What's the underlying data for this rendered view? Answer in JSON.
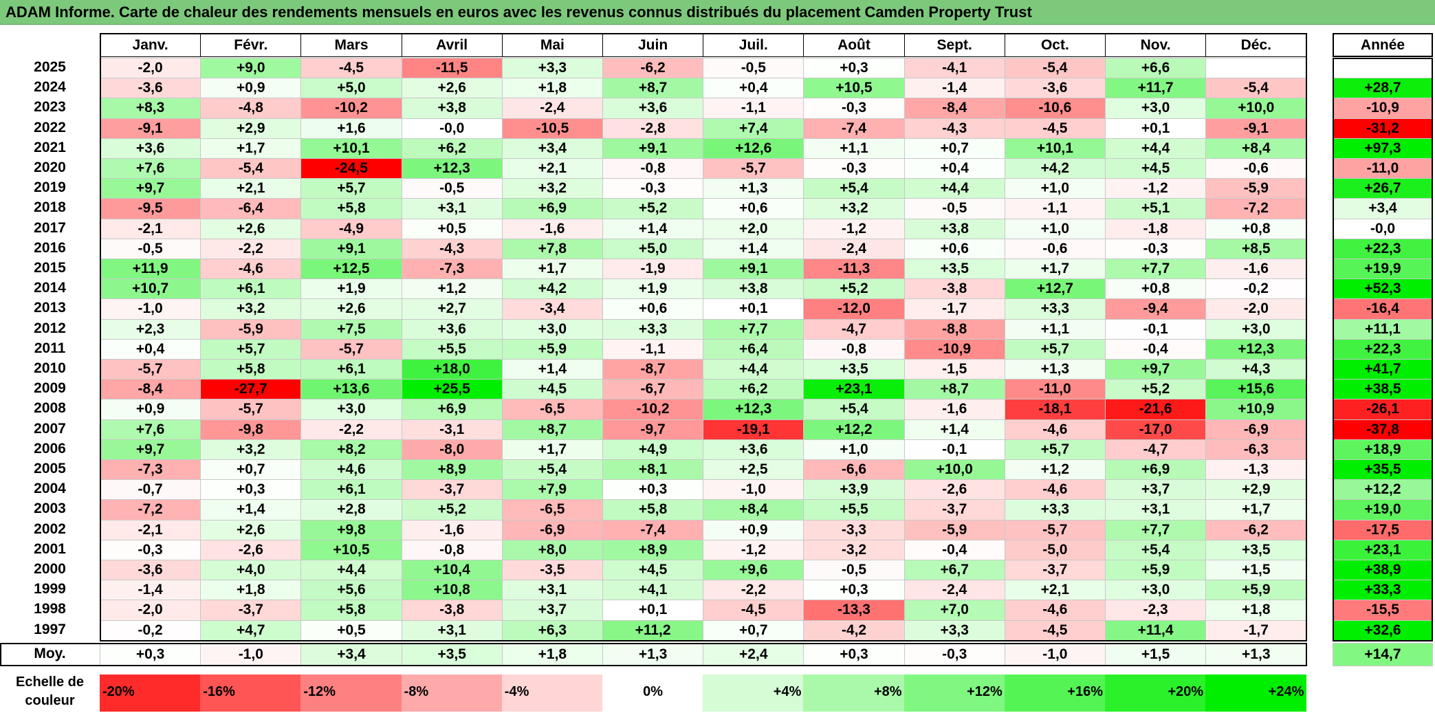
{
  "title": "ADAM Informe. Carte de chaleur des rendements mensuels en euros avec les revenus connus distribués du placement Camden Property Trust",
  "chart_data": {
    "type": "heatmap",
    "title": "ADAM Informe. Carte de chaleur des rendements mensuels en euros avec les revenus connus distribués du placement Camden Property Trust",
    "months": [
      "Janv.",
      "Févr.",
      "Mars",
      "Avril",
      "Mai",
      "Juin",
      "Juil.",
      "Août",
      "Sept.",
      "Oct.",
      "Nov.",
      "Déc."
    ],
    "annual_header": "Année",
    "years": [
      "2025",
      "2024",
      "2023",
      "2022",
      "2021",
      "2020",
      "2019",
      "2018",
      "2017",
      "2016",
      "2015",
      "2014",
      "2013",
      "2012",
      "2011",
      "2010",
      "2009",
      "2008",
      "2007",
      "2006",
      "2005",
      "2004",
      "2003",
      "2002",
      "2001",
      "2000",
      "1999",
      "1998",
      "1997"
    ],
    "values": [
      [
        "-2,0",
        "+9,0",
        "-4,5",
        "-11,5",
        "+3,3",
        "-6,2",
        "-0,5",
        "+0,3",
        "-4,1",
        "-5,4",
        "+6,6",
        ""
      ],
      [
        "-3,6",
        "+0,9",
        "+5,0",
        "+2,6",
        "+1,8",
        "+8,7",
        "+0,4",
        "+10,5",
        "-1,4",
        "-3,6",
        "+11,7",
        "-5,4"
      ],
      [
        "+8,3",
        "-4,8",
        "-10,2",
        "+3,8",
        "-2,4",
        "+3,6",
        "-1,1",
        "-0,3",
        "-8,4",
        "-10,6",
        "+3,0",
        "+10,0"
      ],
      [
        "-9,1",
        "+2,9",
        "+1,6",
        "-0,0",
        "-10,5",
        "-2,8",
        "+7,4",
        "-7,4",
        "-4,3",
        "-4,5",
        "+0,1",
        "-9,1"
      ],
      [
        "+3,6",
        "+1,7",
        "+10,1",
        "+6,2",
        "+3,4",
        "+9,1",
        "+12,6",
        "+1,1",
        "+0,7",
        "+10,1",
        "+4,4",
        "+8,4"
      ],
      [
        "+7,6",
        "-5,4",
        "-24,5",
        "+12,3",
        "+2,1",
        "-0,8",
        "-5,7",
        "-0,3",
        "+0,4",
        "+4,2",
        "+4,5",
        "-0,6"
      ],
      [
        "+9,7",
        "+2,1",
        "+5,7",
        "-0,5",
        "+3,2",
        "-0,3",
        "+1,3",
        "+5,4",
        "+4,4",
        "+1,0",
        "-1,2",
        "-5,9"
      ],
      [
        "-9,5",
        "-6,4",
        "+5,8",
        "+3,1",
        "+6,9",
        "+5,2",
        "+0,6",
        "+3,2",
        "-0,5",
        "-1,1",
        "+5,1",
        "-7,2"
      ],
      [
        "-2,1",
        "+2,6",
        "-4,9",
        "+0,5",
        "-1,6",
        "+1,4",
        "+2,0",
        "-1,2",
        "+3,8",
        "+1,0",
        "-1,8",
        "+0,8"
      ],
      [
        "-0,5",
        "-2,2",
        "+9,1",
        "-4,3",
        "+7,8",
        "+5,0",
        "+1,4",
        "-2,4",
        "+0,6",
        "-0,6",
        "-0,3",
        "+8,5"
      ],
      [
        "+11,9",
        "-4,6",
        "+12,5",
        "-7,3",
        "+1,7",
        "-1,9",
        "+9,1",
        "-11,3",
        "+3,5",
        "+1,7",
        "+7,7",
        "-1,6"
      ],
      [
        "+10,7",
        "+6,1",
        "+1,9",
        "+1,2",
        "+4,2",
        "+1,9",
        "+3,8",
        "+5,2",
        "-3,8",
        "+12,7",
        "+0,8",
        "-0,2"
      ],
      [
        "-1,0",
        "+3,2",
        "+2,6",
        "+2,7",
        "-3,4",
        "+0,6",
        "+0,1",
        "-12,0",
        "-1,7",
        "+3,3",
        "-9,4",
        "-2,0"
      ],
      [
        "+2,3",
        "-5,9",
        "+7,5",
        "+3,6",
        "+3,0",
        "+3,3",
        "+7,7",
        "-4,7",
        "-8,8",
        "+1,1",
        "-0,1",
        "+3,0"
      ],
      [
        "+0,4",
        "+5,7",
        "-5,7",
        "+5,5",
        "+5,9",
        "-1,1",
        "+6,4",
        "-0,8",
        "-10,9",
        "+5,7",
        "-0,4",
        "+12,3"
      ],
      [
        "-5,7",
        "+5,8",
        "+6,1",
        "+18,0",
        "+1,4",
        "-8,7",
        "+4,4",
        "+3,5",
        "-1,5",
        "+1,3",
        "+9,7",
        "+4,3"
      ],
      [
        "-8,4",
        "-27,7",
        "+13,6",
        "+25,5",
        "+4,5",
        "-6,7",
        "+6,2",
        "+23,1",
        "+8,7",
        "-11,0",
        "+5,2",
        "+15,6"
      ],
      [
        "+0,9",
        "-5,7",
        "+3,0",
        "+6,9",
        "-6,5",
        "-10,2",
        "+12,3",
        "+5,4",
        "-1,6",
        "-18,1",
        "-21,6",
        "+10,9"
      ],
      [
        "+7,6",
        "-9,8",
        "-2,2",
        "-3,1",
        "+8,7",
        "-9,7",
        "-19,1",
        "+12,2",
        "+1,4",
        "-4,6",
        "-17,0",
        "-6,9"
      ],
      [
        "+9,7",
        "+3,2",
        "+8,2",
        "-8,0",
        "+1,7",
        "+4,9",
        "+3,6",
        "+1,0",
        "-0,1",
        "+5,7",
        "-4,7",
        "-6,3"
      ],
      [
        "-7,3",
        "+0,7",
        "+4,6",
        "+8,9",
        "+5,4",
        "+8,1",
        "+2,5",
        "-6,6",
        "+10,0",
        "+1,2",
        "+6,9",
        "-1,3"
      ],
      [
        "-0,7",
        "+0,3",
        "+6,1",
        "-3,7",
        "+7,9",
        "+0,3",
        "-1,0",
        "+3,9",
        "-2,6",
        "-4,6",
        "+3,7",
        "+2,9"
      ],
      [
        "-7,2",
        "+1,4",
        "+2,8",
        "+5,2",
        "-6,5",
        "+5,8",
        "+8,4",
        "+5,5",
        "-3,7",
        "+3,3",
        "+3,1",
        "+1,7"
      ],
      [
        "-2,1",
        "+2,6",
        "+9,8",
        "-1,6",
        "-6,9",
        "-7,4",
        "+0,9",
        "-3,3",
        "-5,9",
        "-5,7",
        "+7,7",
        "-6,2"
      ],
      [
        "-0,3",
        "-2,6",
        "+10,5",
        "-0,8",
        "+8,0",
        "+8,9",
        "-1,2",
        "-3,2",
        "-0,4",
        "-5,0",
        "+5,4",
        "+3,5"
      ],
      [
        "-3,6",
        "+4,0",
        "+4,4",
        "+10,4",
        "-3,5",
        "+4,5",
        "+9,6",
        "-0,5",
        "+6,7",
        "-3,7",
        "+5,9",
        "+1,5"
      ],
      [
        "-1,4",
        "+1,8",
        "+5,6",
        "+10,8",
        "+3,1",
        "+4,1",
        "-2,2",
        "+0,3",
        "-2,4",
        "+2,1",
        "+3,0",
        "+5,9"
      ],
      [
        "-2,0",
        "-3,7",
        "+5,8",
        "-3,8",
        "+3,7",
        "+0,1",
        "-4,5",
        "-13,3",
        "+7,0",
        "-4,6",
        "-2,3",
        "+1,8"
      ],
      [
        "-0,2",
        "+4,7",
        "+0,5",
        "+3,1",
        "+6,3",
        "+11,2",
        "+0,7",
        "-4,2",
        "+3,3",
        "-4,5",
        "+11,4",
        "-1,7"
      ]
    ],
    "annual": [
      "",
      "+28,7",
      "-10,9",
      "-31,2",
      "+97,3",
      "-11,0",
      "+26,7",
      "+3,4",
      "-0,0",
      "+22,3",
      "+19,9",
      "+52,3",
      "-16,4",
      "+11,1",
      "+22,3",
      "+41,7",
      "+38,5",
      "-26,1",
      "-37,8",
      "+18,9",
      "+35,5",
      "+12,2",
      "+19,0",
      "-17,5",
      "+23,1",
      "+38,9",
      "+33,3",
      "-15,5",
      "+32,6"
    ],
    "average_label": "Moy.",
    "average": [
      "+0,3",
      "-1,0",
      "+3,4",
      "+3,5",
      "+1,8",
      "+1,3",
      "+2,4",
      "+0,3",
      "-0,3",
      "-1,0",
      "+1,5",
      "+1,3"
    ],
    "average_annual": "+14,7",
    "scale_label": "Echelle de couleur",
    "scale": [
      "-20%",
      "-16%",
      "-12%",
      "-8%",
      "-4%",
      "0%",
      "+4%",
      "+8%",
      "+12%",
      "+16%",
      "+20%",
      "+24%"
    ]
  }
}
